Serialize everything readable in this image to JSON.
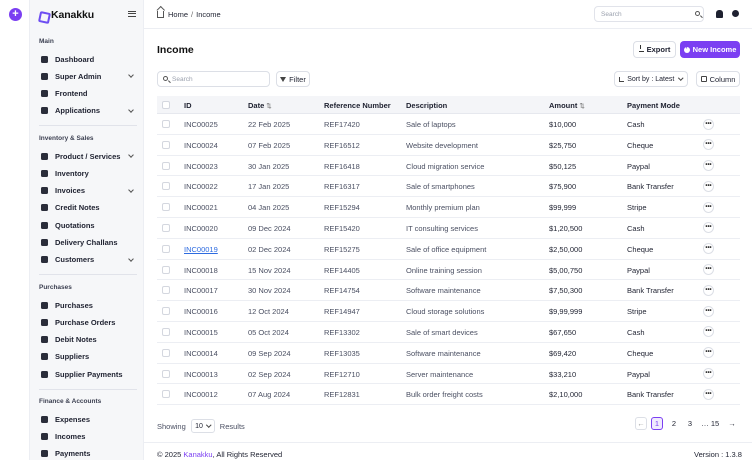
{
  "brand": {
    "name": "Kanakku",
    "accent": "#7b3ff2"
  },
  "sidebar": {
    "sections": [
      {
        "title": "Main",
        "items": [
          {
            "label": "Dashboard",
            "icon": "dashboard-icon",
            "chevron": false
          },
          {
            "label": "Super Admin",
            "icon": "super-admin-icon",
            "chevron": true
          },
          {
            "label": "Frontend",
            "icon": "frontend-icon",
            "chevron": false
          },
          {
            "label": "Applications",
            "icon": "applications-icon",
            "chevron": true
          }
        ]
      },
      {
        "title": "Inventory & Sales",
        "items": [
          {
            "label": "Product / Services",
            "icon": "product-icon",
            "chevron": true
          },
          {
            "label": "Inventory",
            "icon": "inventory-icon",
            "chevron": false
          },
          {
            "label": "Invoices",
            "icon": "invoices-icon",
            "chevron": true
          },
          {
            "label": "Credit Notes",
            "icon": "credit-notes-icon",
            "chevron": false
          },
          {
            "label": "Quotations",
            "icon": "quotations-icon",
            "chevron": false
          },
          {
            "label": "Delivery Challans",
            "icon": "delivery-icon",
            "chevron": false
          },
          {
            "label": "Customers",
            "icon": "customers-icon",
            "chevron": true
          }
        ]
      },
      {
        "title": "Purchases",
        "items": [
          {
            "label": "Purchases",
            "icon": "purchases-icon",
            "chevron": false
          },
          {
            "label": "Purchase Orders",
            "icon": "purchase-orders-icon",
            "chevron": false
          },
          {
            "label": "Debit Notes",
            "icon": "debit-notes-icon",
            "chevron": false
          },
          {
            "label": "Suppliers",
            "icon": "suppliers-icon",
            "chevron": false
          },
          {
            "label": "Supplier Payments",
            "icon": "supplier-payments-icon",
            "chevron": false
          }
        ]
      },
      {
        "title": "Finance & Accounts",
        "items": [
          {
            "label": "Expenses",
            "icon": "expenses-icon",
            "chevron": false
          },
          {
            "label": "Incomes",
            "icon": "incomes-icon",
            "chevron": false
          },
          {
            "label": "Payments",
            "icon": "payments-icon",
            "chevron": false
          }
        ]
      }
    ]
  },
  "topbar": {
    "breadcrumb": {
      "home": "Home",
      "separator": "/",
      "current": "Income"
    },
    "search_placeholder": "Search"
  },
  "page": {
    "title": "Income",
    "export_label": "Export",
    "new_label": "New Income",
    "search_placeholder": "Search",
    "filter_label": "Filter",
    "sort_label": "Sort by : Latest",
    "column_label": "Column"
  },
  "table": {
    "headers": {
      "id": "ID",
      "date": "Date",
      "ref": "Reference Number",
      "desc": "Description",
      "amount": "Amount",
      "mode": "Payment Mode",
      "sort_arrow": "⇅"
    },
    "rows": [
      {
        "id": "INC00025",
        "date": "22 Feb 2025",
        "ref": "REF17420",
        "desc": "Sale of laptops",
        "amount": "$10,000",
        "mode": "Cash"
      },
      {
        "id": "INC00024",
        "date": "07 Feb 2025",
        "ref": "REF16512",
        "desc": "Website development",
        "amount": "$25,750",
        "mode": "Cheque"
      },
      {
        "id": "INC00023",
        "date": "30 Jan 2025",
        "ref": "REF16418",
        "desc": "Cloud migration service",
        "amount": "$50,125",
        "mode": "Paypal"
      },
      {
        "id": "INC00022",
        "date": "17 Jan 2025",
        "ref": "REF16317",
        "desc": "Sale of smartphones",
        "amount": "$75,900",
        "mode": "Bank Transfer"
      },
      {
        "id": "INC00021",
        "date": "04 Jan 2025",
        "ref": "REF15294",
        "desc": "Monthly premium plan",
        "amount": "$99,999",
        "mode": "Stripe"
      },
      {
        "id": "INC00020",
        "date": "09 Dec 2024",
        "ref": "REF15420",
        "desc": "IT consulting services",
        "amount": "$1,20,500",
        "mode": "Cash"
      },
      {
        "id": "INC00019",
        "date": "02 Dec 2024",
        "ref": "REF15275",
        "desc": "Sale of office equipment",
        "amount": "$2,50,000",
        "mode": "Cheque"
      },
      {
        "id": "INC00018",
        "date": "15 Nov 2024",
        "ref": "REF14405",
        "desc": "Online training session",
        "amount": "$5,00,750",
        "mode": "Paypal"
      },
      {
        "id": "INC00017",
        "date": "30 Nov 2024",
        "ref": "REF14754",
        "desc": "Software maintenance",
        "amount": "$7,50,300",
        "mode": "Bank Transfer"
      },
      {
        "id": "INC00016",
        "date": "12 Oct 2024",
        "ref": "REF14947",
        "desc": "Cloud storage solutions",
        "amount": "$9,99,999",
        "mode": "Stripe"
      },
      {
        "id": "INC00015",
        "date": "05 Oct 2024",
        "ref": "REF13302",
        "desc": "Sale of smart devices",
        "amount": "$67,650",
        "mode": "Cash"
      },
      {
        "id": "INC00014",
        "date": "09 Sep 2024",
        "ref": "REF13035",
        "desc": "Software maintenance",
        "amount": "$69,420",
        "mode": "Cheque"
      },
      {
        "id": "INC00013",
        "date": "02 Sep 2024",
        "ref": "REF12710",
        "desc": "Server maintenance",
        "amount": "$33,210",
        "mode": "Paypal"
      },
      {
        "id": "INC00012",
        "date": "07 Aug 2024",
        "ref": "REF12831",
        "desc": "Bulk order freight costs",
        "amount": "$2,10,000",
        "mode": "Bank Transfer"
      }
    ],
    "linked_row_index": 6,
    "more_label": "•••"
  },
  "footer": {
    "showing_label": "Showing",
    "page_size": "10",
    "results_label": "Results",
    "pages": [
      "1",
      "2",
      "3",
      "…",
      "15"
    ],
    "active_page": "1",
    "prev": "←",
    "next": "→",
    "copyright_prefix": "© 2025 ",
    "copyright_brand": "Kanakku",
    "copyright_suffix": ", All Rights Reserved",
    "version": "Version : 1.3.8"
  }
}
